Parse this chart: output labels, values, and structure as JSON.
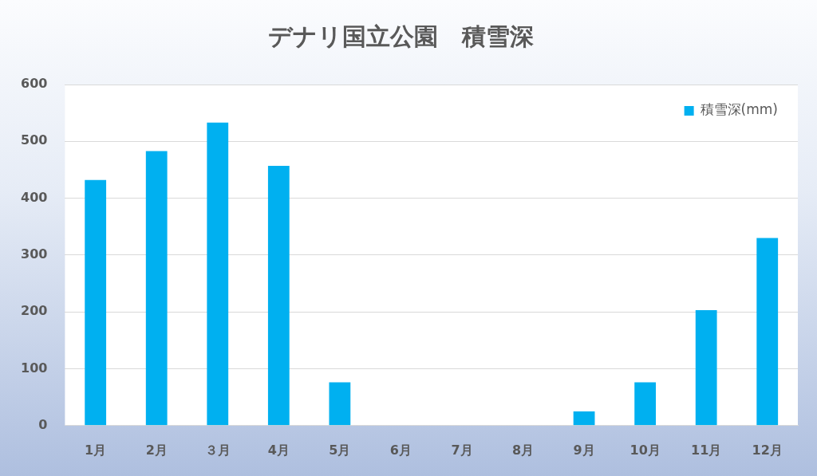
{
  "chart_data": {
    "type": "bar",
    "title": "デナリ国立公園　積雪深",
    "categories": [
      "1月",
      "2月",
      "３月",
      "4月",
      "5月",
      "6月",
      "7月",
      "8月",
      "9月",
      "10月",
      "11月",
      "12月"
    ],
    "series": [
      {
        "name": "積雪深(mm)",
        "color": "#00b0f0",
        "values": [
          432,
          483,
          533,
          457,
          76,
          0,
          0,
          0,
          25,
          76,
          203,
          330
        ]
      }
    ],
    "ylim": [
      0,
      600
    ],
    "yticks": [
      0,
      100,
      200,
      300,
      400,
      500,
      600
    ],
    "grid": "y",
    "legend": "top right"
  }
}
